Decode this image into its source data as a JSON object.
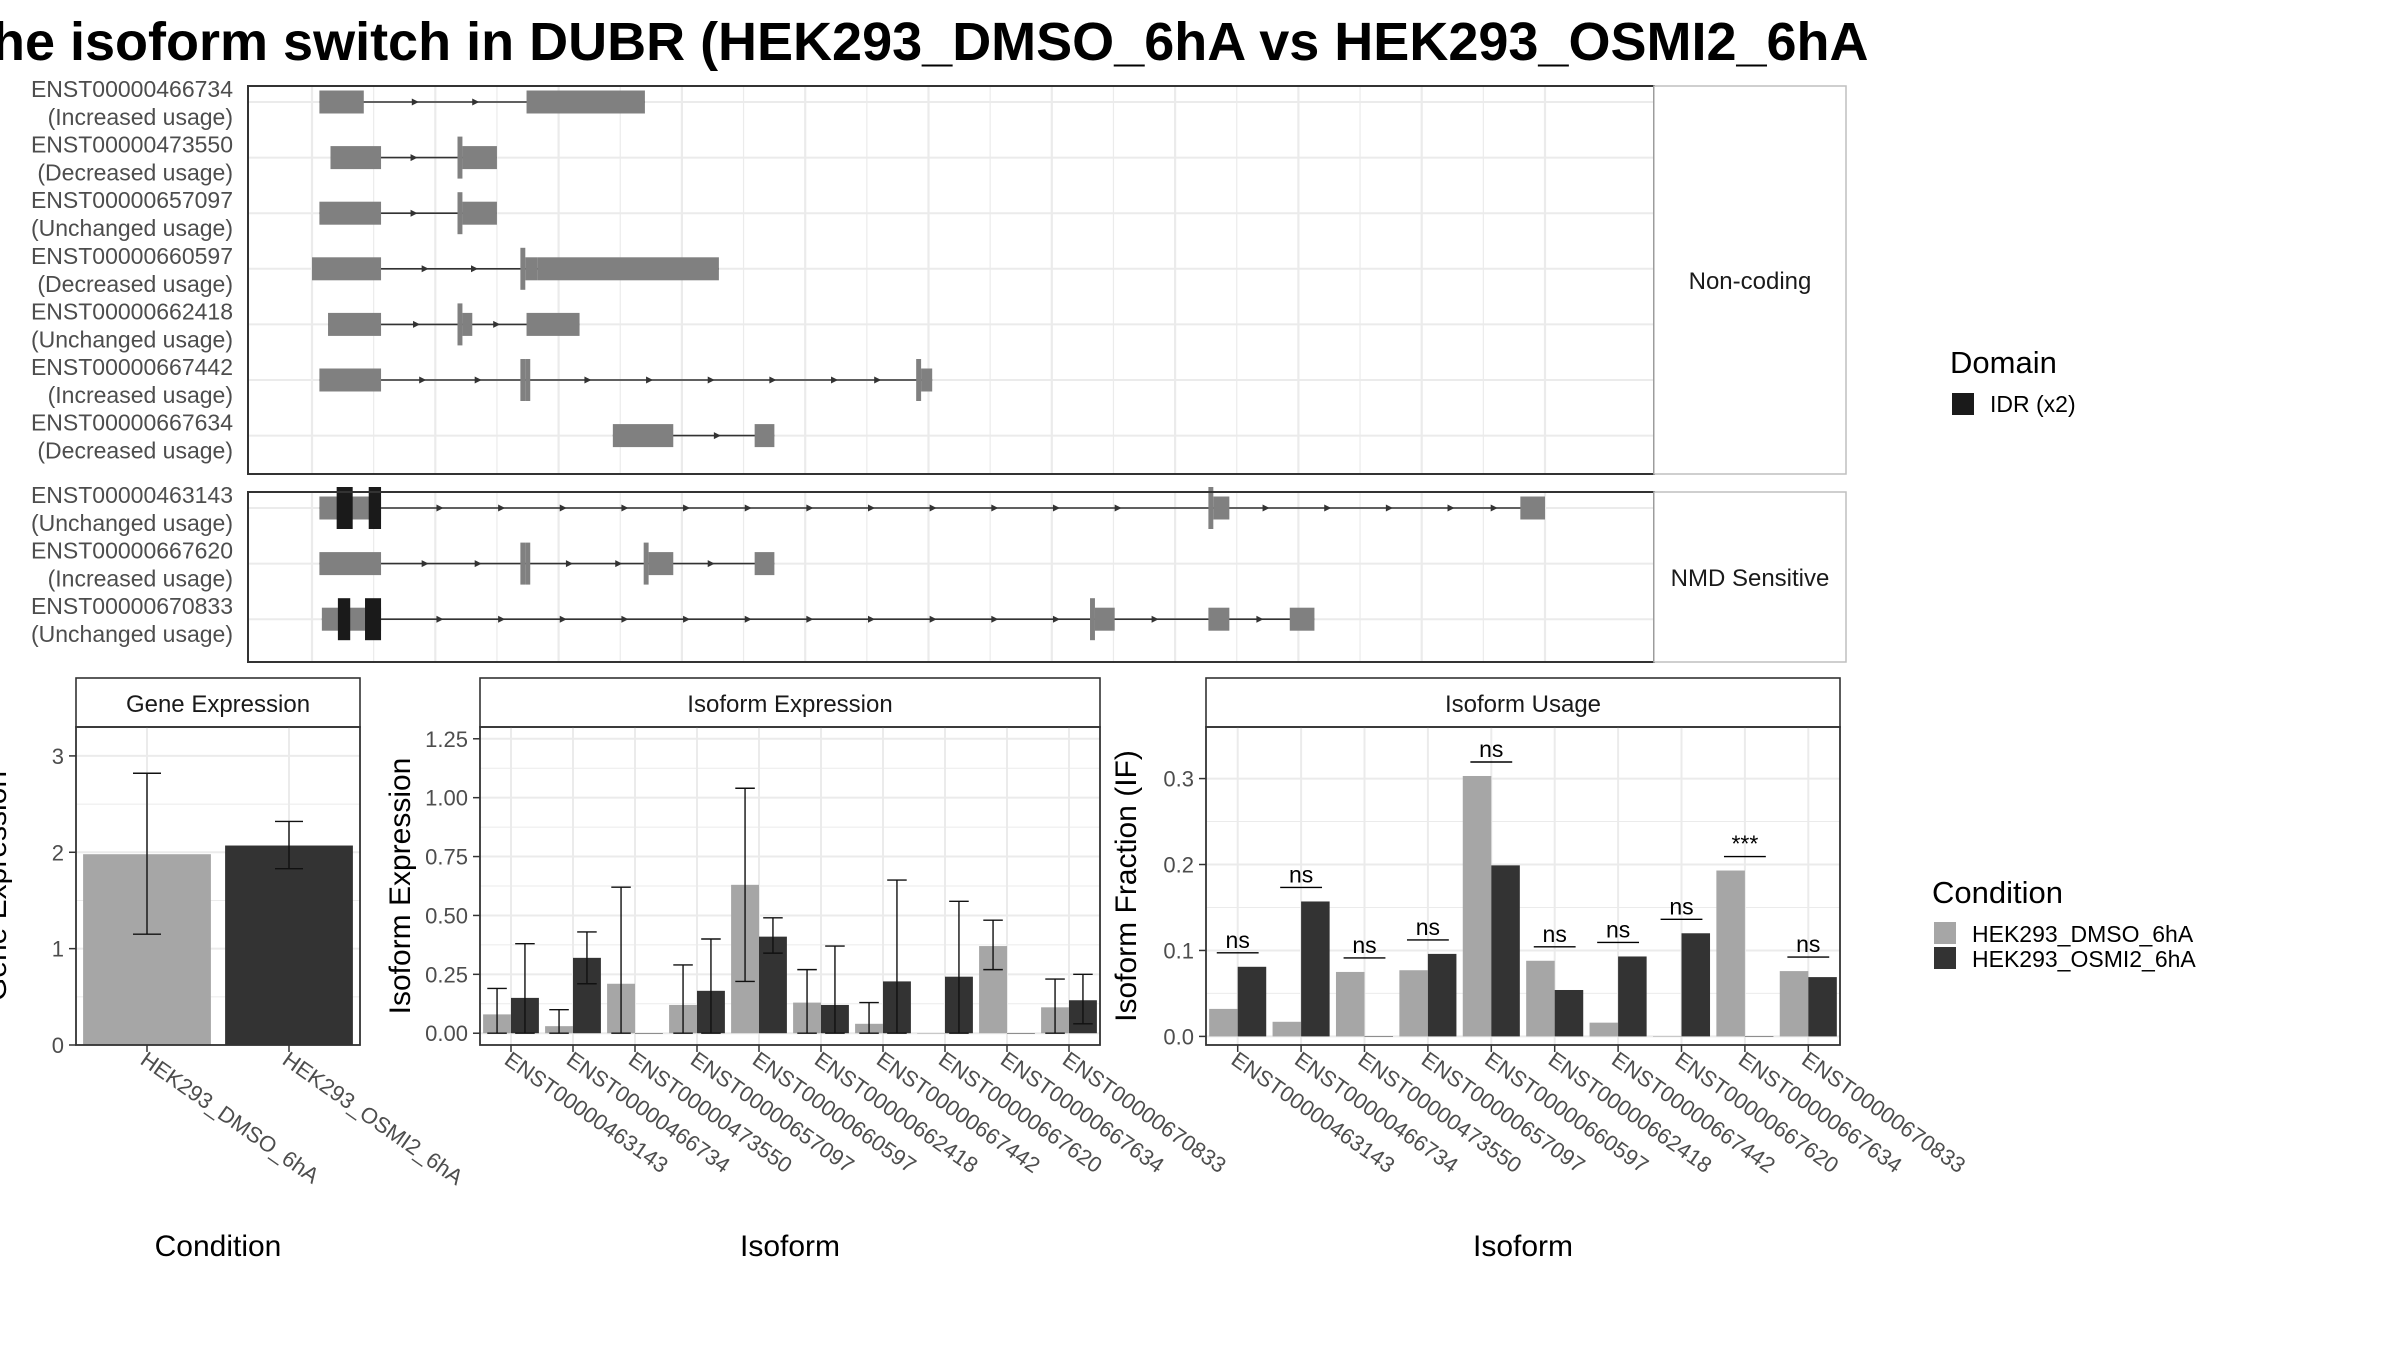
{
  "title": "he isoform switch in DUBR (HEK293_DMSO_6hA vs HEK293_OSMI2_6hA",
  "colors": {
    "dmso": "#a6a6a6",
    "osmi": "#333333",
    "exon": "#808080",
    "idr": "#1a1a1a",
    "panel_border": "#333333",
    "grid": "#ebebeb",
    "strip_border": "#bfbfbf"
  },
  "structure": {
    "x_domain": [
      0,
      100
    ],
    "groups": [
      {
        "label": "Non-coding",
        "transcripts": [
          {
            "id": "ENST00000466734",
            "usage": "(Increased usage)",
            "exons": [
              [
                0.6,
                4.2
              ],
              [
                17.4,
                27.0
              ]
            ],
            "arrows": [
              8.5,
              13.4
            ]
          },
          {
            "id": "ENST00000473550",
            "usage": "(Decreased usage)",
            "exons": [
              [
                1.5,
                5.6
              ],
              [
                11.8,
                12.2
              ],
              [
                12.2,
                15.0
              ]
            ],
            "arrows": [
              8.4
            ]
          },
          {
            "id": "ENST00000657097",
            "usage": "(Unchanged usage)",
            "exons": [
              [
                0.6,
                5.6
              ],
              [
                11.8,
                12.2
              ],
              [
                12.2,
                15.0
              ]
            ],
            "arrows": [
              8.4
            ]
          },
          {
            "id": "ENST00000660597",
            "usage": "(Decreased usage)",
            "exons": [
              [
                0.0,
                5.6
              ],
              [
                16.9,
                17.3
              ],
              [
                17.3,
                18.3
              ],
              [
                18.3,
                33.0
              ]
            ],
            "arrows": [
              9.3,
              13.3
            ]
          },
          {
            "id": "ENST00000662418",
            "usage": "(Unchanged usage)",
            "exons": [
              [
                1.3,
                5.6
              ],
              [
                11.8,
                12.2
              ],
              [
                12.2,
                13.0
              ],
              [
                17.4,
                21.7
              ]
            ],
            "arrows": [
              8.6,
              15.1
            ]
          },
          {
            "id": "ENST00000667442",
            "usage": "(Increased usage)",
            "exons": [
              [
                0.6,
                5.6
              ],
              [
                16.9,
                17.3
              ],
              [
                17.3,
                17.7
              ],
              [
                49.0,
                49.4
              ],
              [
                49.4,
                50.3
              ]
            ],
            "arrows": [
              9.1,
              13.6,
              22.5,
              27.5,
              32.5,
              37.5,
              42.5,
              46.0
            ]
          },
          {
            "id": "ENST00000667634",
            "usage": "(Decreased usage)",
            "exons": [
              [
                24.4,
                29.3
              ],
              [
                35.9,
                37.5
              ]
            ],
            "arrows": [
              33.0
            ]
          }
        ]
      },
      {
        "label": "NMD Sensitive",
        "transcripts": [
          {
            "id": "ENST00000463143",
            "usage": "(Unchanged usage)",
            "exons": [
              [
                0.6,
                5.6
              ],
              [
                72.7,
                73.1
              ],
              [
                73.1,
                74.4
              ],
              [
                98.0,
                100.0
              ]
            ],
            "idr": [
              [
                2.0,
                3.3
              ],
              [
                4.6,
                5.6
              ]
            ],
            "arrows": [
              10.5,
              15.5,
              20.5,
              25.5,
              30.5,
              35.5,
              40.5,
              45.5,
              50.5,
              55.5,
              60.5,
              65.5,
              77.5,
              82.5,
              87.5,
              92.5,
              96.0
            ]
          },
          {
            "id": "ENST00000667620",
            "usage": "(Increased usage)",
            "exons": [
              [
                0.6,
                5.6
              ],
              [
                16.9,
                17.3
              ],
              [
                17.3,
                17.7
              ],
              [
                26.9,
                27.3
              ],
              [
                27.3,
                29.3
              ],
              [
                35.9,
                37.5
              ]
            ],
            "arrows": [
              9.3,
              13.6,
              21.0,
              25.0,
              32.5
            ]
          },
          {
            "id": "ENST00000670833",
            "usage": "(Unchanged usage)",
            "exons": [
              [
                0.8,
                5.6
              ],
              [
                63.1,
                63.5
              ],
              [
                63.5,
                65.1
              ],
              [
                72.7,
                74.4
              ],
              [
                79.3,
                81.3
              ]
            ],
            "idr": [
              [
                2.1,
                3.1
              ],
              [
                4.3,
                5.6
              ]
            ],
            "arrows": [
              10.5,
              15.5,
              20.5,
              25.5,
              30.5,
              35.5,
              40.5,
              45.5,
              50.5,
              55.5,
              60.5,
              68.5,
              77.0
            ]
          }
        ]
      }
    ]
  },
  "legends": {
    "domain": {
      "title": "Domain",
      "items": [
        {
          "label": "IDR (x2)"
        }
      ]
    },
    "condition": {
      "title": "Condition",
      "items": [
        {
          "label": "HEK293_DMSO_6hA"
        },
        {
          "label": "HEK293_OSMI2_6hA"
        }
      ]
    }
  },
  "chart_data": [
    {
      "type": "bar",
      "panel": "Gene Expression",
      "xlabel": "Condition",
      "ylabel": "Gene Expression",
      "ylim": [
        0,
        3.3
      ],
      "yticks": [
        0,
        1,
        2,
        3
      ],
      "categories": [
        "HEK293_DMSO_6hA",
        "HEK293_OSMI2_6hA"
      ],
      "values": [
        1.98,
        2.07
      ],
      "error_low": [
        1.15,
        1.83
      ],
      "error_high": [
        2.82,
        2.32
      ]
    },
    {
      "type": "bar",
      "panel": "Isoform Expression",
      "xlabel": "Isoform",
      "ylabel": "Isoform Expression",
      "ylim": [
        -0.05,
        1.3
      ],
      "yticks": [
        "0.00",
        "0.25",
        "0.50",
        "0.75",
        "1.00",
        "1.25"
      ],
      "categories": [
        "ENST00000463143",
        "ENST00000466734",
        "ENST00000473550",
        "ENST00000657097",
        "ENST00000660597",
        "ENST00000662418",
        "ENST00000667442",
        "ENST00000667620",
        "ENST00000667634",
        "ENST00000670833"
      ],
      "series": [
        {
          "name": "HEK293_DMSO_6hA",
          "values": [
            0.08,
            0.03,
            0.21,
            0.12,
            0.63,
            0.13,
            0.04,
            0.0,
            0.37,
            0.11
          ],
          "error_low": [
            0.0,
            0.0,
            0.0,
            0.0,
            0.22,
            0.0,
            0.0,
            0.0,
            0.27,
            0.0
          ],
          "error_high": [
            0.19,
            0.1,
            0.62,
            0.29,
            1.04,
            0.27,
            0.13,
            0.0,
            0.48,
            0.23
          ]
        },
        {
          "name": "HEK293_OSMI2_6hA",
          "values": [
            0.15,
            0.32,
            0.0,
            0.18,
            0.41,
            0.12,
            0.22,
            0.24,
            0.0,
            0.14
          ],
          "error_low": [
            0.0,
            0.21,
            0.0,
            0.0,
            0.34,
            0.0,
            0.0,
            0.0,
            0.0,
            0.04
          ],
          "error_high": [
            0.38,
            0.43,
            0.0,
            0.4,
            0.49,
            0.37,
            0.65,
            0.56,
            0.0,
            0.25
          ]
        }
      ]
    },
    {
      "type": "bar",
      "panel": "Isoform Usage",
      "xlabel": "Isoform",
      "ylabel": "Isoform Fraction (IF)",
      "ylim": [
        -0.01,
        0.36
      ],
      "yticks": [
        "0.0",
        "0.1",
        "0.2",
        "0.3"
      ],
      "categories": [
        "ENST00000463143",
        "ENST00000466734",
        "ENST00000473550",
        "ENST00000657097",
        "ENST00000660597",
        "ENST00000662418",
        "ENST00000667442",
        "ENST00000667620",
        "ENST00000667634",
        "ENST00000670833"
      ],
      "series": [
        {
          "name": "HEK293_DMSO_6hA",
          "values": [
            0.032,
            0.017,
            0.075,
            0.077,
            0.303,
            0.088,
            0.016,
            0.0,
            0.193,
            0.076
          ]
        },
        {
          "name": "HEK293_OSMI2_6hA",
          "values": [
            0.081,
            0.157,
            0.0,
            0.096,
            0.199,
            0.054,
            0.093,
            0.12,
            0.0,
            0.069
          ]
        }
      ],
      "significance": [
        "ns",
        "ns",
        "ns",
        "ns",
        "ns",
        "ns",
        "ns",
        "ns",
        "***",
        "ns"
      ]
    }
  ]
}
